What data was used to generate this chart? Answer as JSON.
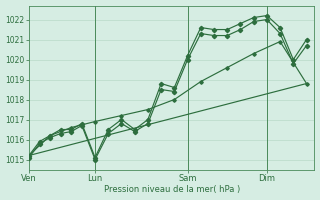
{
  "xlabel": "Pression niveau de la mer( hPa )",
  "bg_color": "#d6ede3",
  "grid_color": "#b8d9c8",
  "line_color": "#2d6e3e",
  "ylim": [
    1014.5,
    1022.7
  ],
  "yticks": [
    1015,
    1016,
    1017,
    1018,
    1019,
    1020,
    1021,
    1022
  ],
  "day_labels": [
    "Ven",
    "Lun",
    "Sam",
    "Dim"
  ],
  "day_positions": [
    0,
    2.5,
    6,
    9
  ],
  "xlim": [
    0,
    10.8
  ],
  "vline_positions": [
    2.5,
    6.0,
    9.0
  ],
  "series1_x": [
    0,
    0.4,
    0.8,
    1.2,
    1.6,
    2.0,
    2.5,
    3.0,
    3.5,
    4.0,
    4.5,
    5.0,
    5.5,
    6.0,
    6.5,
    7.0,
    7.5,
    8.0,
    8.5,
    9.0,
    9.5,
    10.0,
    10.5
  ],
  "series1_y": [
    1015.2,
    1015.9,
    1016.2,
    1016.5,
    1016.5,
    1016.8,
    1015.1,
    1016.5,
    1017.0,
    1016.5,
    1017.0,
    1018.8,
    1018.6,
    1020.2,
    1021.6,
    1021.5,
    1021.5,
    1021.8,
    1022.1,
    1022.2,
    1021.6,
    1020.0,
    1021.0
  ],
  "series2_x": [
    0,
    0.4,
    0.8,
    1.2,
    1.6,
    2.0,
    2.5,
    3.0,
    3.5,
    4.0,
    4.5,
    5.0,
    5.5,
    6.0,
    6.5,
    7.0,
    7.5,
    8.0,
    8.5,
    9.0,
    9.5,
    10.0,
    10.5
  ],
  "series2_y": [
    1015.1,
    1015.8,
    1016.1,
    1016.3,
    1016.4,
    1016.7,
    1015.0,
    1016.3,
    1016.8,
    1016.4,
    1016.8,
    1018.5,
    1018.4,
    1020.0,
    1021.3,
    1021.2,
    1021.2,
    1021.5,
    1021.9,
    1022.0,
    1021.3,
    1019.8,
    1020.7
  ],
  "series3_x": [
    0,
    0.8,
    1.6,
    2.5,
    3.5,
    4.5,
    5.5,
    6.5,
    7.5,
    8.5,
    9.5,
    10.5
  ],
  "series3_y": [
    1015.2,
    1016.2,
    1016.6,
    1016.9,
    1017.2,
    1017.5,
    1018.0,
    1018.9,
    1019.6,
    1020.3,
    1020.9,
    1018.8
  ],
  "series4_x": [
    0,
    10.5
  ],
  "series4_y": [
    1015.2,
    1018.8
  ]
}
